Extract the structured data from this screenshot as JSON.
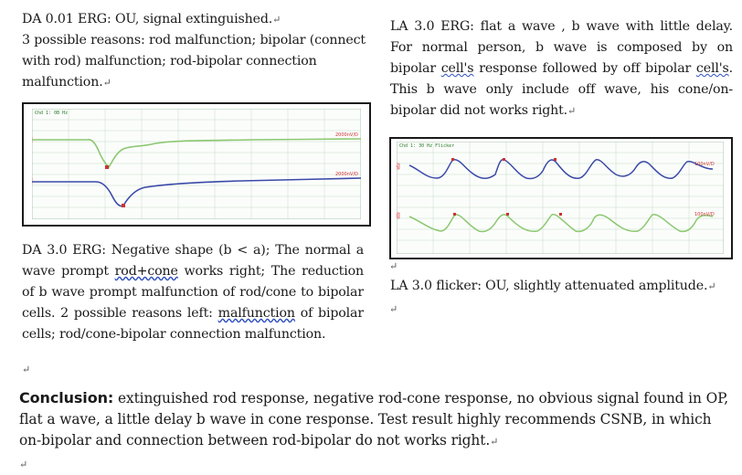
{
  "left_top": {
    "line1": "DA 0.01 ERG: OU, signal extinguished.",
    "line2": "3 possible reasons: rod malfunction; bipolar (connect with rod) malfunction; rod-bipolar connection malfunction."
  },
  "erg1": {
    "header": "Chd 1: 0B Hz",
    "ch1_label": "1A",
    "ch2_label": "1B",
    "scale1": "2000nV/D",
    "scale2": "2000nV/D",
    "markers": [
      "a",
      "b"
    ],
    "colors": {
      "trace1": "#8cc870",
      "trace2": "#3b4aa8",
      "tag": "#cc3333"
    }
  },
  "left_mid": {
    "prefix": "DA 3.0 ERG:  Negative shape (b < a); The normal a wave prompt ",
    "rodcone": "rod+cone",
    "middle": " works right; The reduction of b wave prompt malfunction of rod/cone to bipolar cells. 2 possible reasons left: ",
    "malf": "malfunction",
    "suffix": " of bipolar cells; rod/cone-bipolar connection malfunction."
  },
  "right_top": {
    "start": "LA 3.0 ERG: flat a wave , b wave with little delay. For normal person, b wave is composed by on bipolar ",
    "cells": "cell's",
    "mid": " response followed by off bipolar ",
    "cells2": "cell's",
    "end": ". This b wave only include off wave, his cone/on-bipolar did not works right."
  },
  "erg2": {
    "header": "Chd 1: 30 Hz Flicker",
    "ch1_label": "1A",
    "ch2_label": "1B",
    "scale1": "100nV/D",
    "scale2": "100nV/D",
    "colors": {
      "trace1": "#3b4aa8",
      "trace2": "#8cc870",
      "tag": "#cc3333"
    }
  },
  "right_mid": {
    "text": "LA 3.0 flicker: OU, slightly attenuated amplitude."
  },
  "conclusion": {
    "lead": "Conclusion:",
    "body": " extinguished rod response, negative rod-cone response, no obvious signal found in OP, flat a wave, a little delay b wave in cone response. Test result highly recommends CSNB, in which on-bipolar and connection between rod-bipolar do not works right."
  },
  "marks": {
    "return": "↵"
  }
}
